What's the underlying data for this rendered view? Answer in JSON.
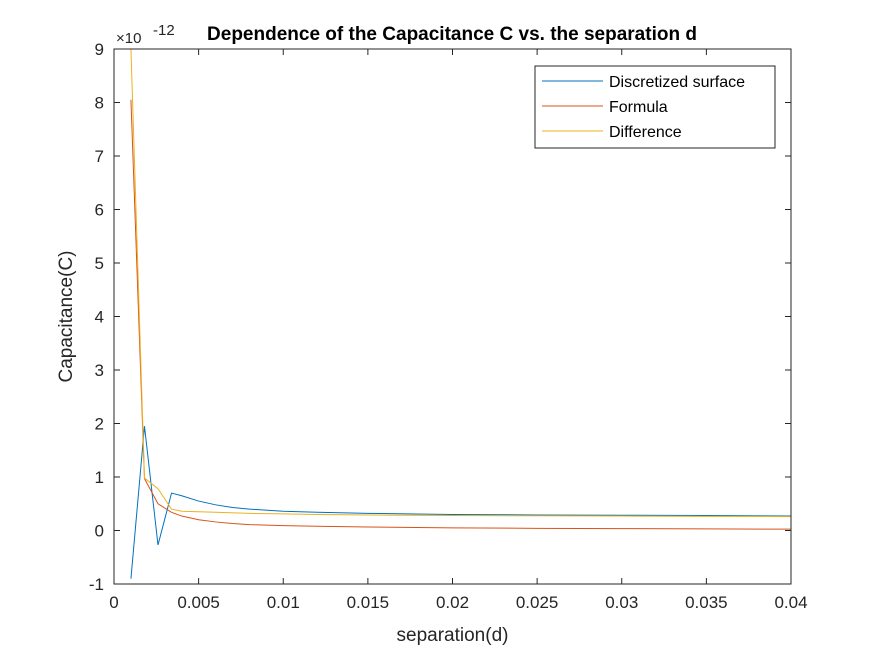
{
  "chart_data": {
    "type": "line",
    "title": "Dependence of the Capacitance C vs. the separation d",
    "xlabel": "separation(d)",
    "ylabel": "Capacitance(C)",
    "xlim": [
      0,
      0.04
    ],
    "ylim": [
      -1,
      9
    ],
    "y_exponent_label": "×10",
    "y_exponent_power": "-12",
    "xticks": [
      0,
      0.005,
      0.01,
      0.015,
      0.02,
      0.025,
      0.03,
      0.035,
      0.04
    ],
    "xtick_labels": [
      "0",
      "0.005",
      "0.01",
      "0.015",
      "0.02",
      "0.025",
      "0.03",
      "0.035",
      "0.04"
    ],
    "yticks": [
      -1,
      0,
      1,
      2,
      3,
      4,
      5,
      6,
      7,
      8,
      9
    ],
    "ytick_labels": [
      "-1",
      "0",
      "1",
      "2",
      "3",
      "4",
      "5",
      "6",
      "7",
      "8",
      "9"
    ],
    "grid": false,
    "legend_position": "top-right",
    "series": [
      {
        "name": "Discretized surface",
        "color": "#0072BD",
        "x": [
          0.001,
          0.0018,
          0.0026,
          0.0034,
          0.004,
          0.005,
          0.006,
          0.007,
          0.008,
          0.01,
          0.012,
          0.015,
          0.02,
          0.025,
          0.03,
          0.035,
          0.04
        ],
        "y": [
          -0.9,
          1.95,
          -0.27,
          0.7,
          0.65,
          0.55,
          0.48,
          0.43,
          0.4,
          0.36,
          0.34,
          0.32,
          0.3,
          0.29,
          0.285,
          0.28,
          0.27
        ]
      },
      {
        "name": "Formula",
        "color": "#D95319",
        "x": [
          0.001,
          0.0018,
          0.0026,
          0.0034,
          0.004,
          0.005,
          0.006,
          0.007,
          0.008,
          0.01,
          0.012,
          0.015,
          0.02,
          0.025,
          0.03,
          0.035,
          0.04
        ],
        "y": [
          8.05,
          0.97,
          0.5,
          0.34,
          0.27,
          0.2,
          0.16,
          0.13,
          0.11,
          0.09,
          0.08,
          0.065,
          0.05,
          0.04,
          0.035,
          0.03,
          0.025
        ]
      },
      {
        "name": "Difference",
        "color": "#EDB120",
        "x": [
          0.001,
          0.0018,
          0.0026,
          0.0034,
          0.004,
          0.005,
          0.006,
          0.008,
          0.01,
          0.012,
          0.015,
          0.02,
          0.025,
          0.03,
          0.035,
          0.04
        ],
        "y": [
          9.0,
          0.98,
          0.78,
          0.4,
          0.36,
          0.35,
          0.34,
          0.32,
          0.31,
          0.3,
          0.29,
          0.28,
          0.275,
          0.27,
          0.265,
          0.26
        ]
      }
    ]
  }
}
